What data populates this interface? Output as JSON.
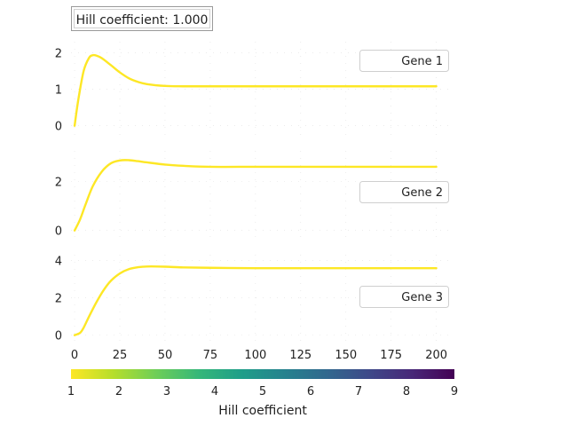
{
  "hill_label": "Hill coefficient: 1.000",
  "colors": {
    "line": "#fde725",
    "grid": "#cccccc"
  },
  "chart_data": [
    {
      "type": "line",
      "series": [
        {
          "name": "Gene 1",
          "x": [
            0,
            2,
            5,
            8,
            10,
            12,
            15,
            20,
            25,
            30,
            35,
            40,
            50,
            60,
            75,
            100,
            125,
            150,
            175,
            200
          ],
          "y": [
            0,
            0.7,
            1.5,
            1.86,
            1.93,
            1.92,
            1.85,
            1.66,
            1.46,
            1.3,
            1.2,
            1.14,
            1.09,
            1.08,
            1.08,
            1.08,
            1.08,
            1.08,
            1.08,
            1.08
          ]
        }
      ],
      "xlim": [
        -2,
        210
      ],
      "ylim": [
        -0.25,
        2.3
      ],
      "yticks": [
        0,
        1,
        2
      ],
      "xticks": [
        0,
        25,
        50,
        75,
        100,
        125,
        150,
        175,
        200
      ],
      "legend": "upper right",
      "grid": true
    },
    {
      "type": "line",
      "series": [
        {
          "name": "Gene 2",
          "x": [
            0,
            3,
            6,
            10,
            15,
            20,
            25,
            30,
            35,
            40,
            50,
            60,
            75,
            100,
            125,
            150,
            175,
            200
          ],
          "y": [
            0,
            0.45,
            1.05,
            1.8,
            2.4,
            2.74,
            2.86,
            2.87,
            2.83,
            2.78,
            2.69,
            2.64,
            2.6,
            2.6,
            2.6,
            2.6,
            2.6,
            2.6
          ]
        }
      ],
      "xlim": [
        -2,
        210
      ],
      "ylim": [
        -0.3,
        3.25
      ],
      "yticks": [
        0,
        2
      ],
      "xticks": [
        0,
        25,
        50,
        75,
        100,
        125,
        150,
        175,
        200
      ],
      "legend": "center right",
      "grid": true
    },
    {
      "type": "line",
      "series": [
        {
          "name": "Gene 3",
          "x": [
            0,
            3,
            5,
            8,
            12,
            16,
            20,
            25,
            30,
            35,
            40,
            50,
            60,
            75,
            100,
            125,
            150,
            175,
            200
          ],
          "y": [
            0,
            0.12,
            0.4,
            1.0,
            1.75,
            2.4,
            2.9,
            3.3,
            3.53,
            3.63,
            3.67,
            3.66,
            3.62,
            3.6,
            3.58,
            3.58,
            3.58,
            3.58,
            3.58
          ]
        }
      ],
      "xlim": [
        -2,
        210
      ],
      "ylim": [
        -0.35,
        4.3
      ],
      "yticks": [
        0,
        2,
        4
      ],
      "xticks": [
        0,
        25,
        50,
        75,
        100,
        125,
        150,
        175,
        200
      ],
      "xticklabels": [
        "0",
        "25",
        "50",
        "75",
        "100",
        "125",
        "150",
        "175",
        "200"
      ],
      "legend": "center right",
      "grid": true
    },
    {
      "type": "heatmap",
      "xlabel": "Hill coefficient",
      "colormap": "viridis",
      "range": [
        1,
        9
      ],
      "ticks": [
        "1",
        "2",
        "3",
        "4",
        "5",
        "6",
        "7",
        "8",
        "9"
      ]
    }
  ]
}
